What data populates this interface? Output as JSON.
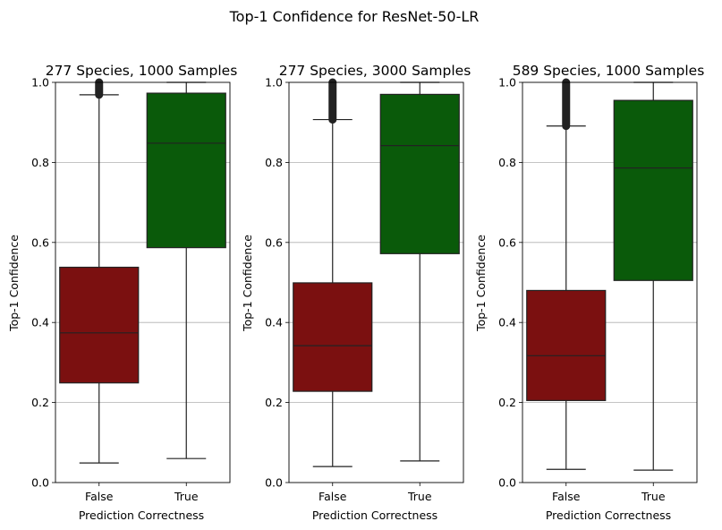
{
  "figure": {
    "suptitle": "Top-1 Confidence for ResNet-50-LR"
  },
  "chart_data": [
    {
      "type": "box",
      "title": "277 Species, 1000 Samples",
      "xlabel": "Prediction Correctness",
      "ylabel": "Top-1 Confidence",
      "ylim": [
        0,
        1
      ],
      "yticks": [
        "0.0",
        "0.2",
        "0.4",
        "0.6",
        "0.8",
        "1.0"
      ],
      "categories": [
        "False",
        "True"
      ],
      "grid": "y",
      "colors": [
        "#7b1010",
        "#0a5a0a"
      ],
      "boxes": [
        {
          "category": "False",
          "whisker_low": 0.049,
          "q1": 0.249,
          "median": 0.374,
          "q3": 0.538,
          "whisker_high": 0.969,
          "outliers_from": 0.969,
          "outliers_to": 1.0
        },
        {
          "category": "True",
          "whisker_low": 0.06,
          "q1": 0.587,
          "median": 0.848,
          "q3": 0.973,
          "whisker_high": 1.0
        }
      ]
    },
    {
      "type": "box",
      "title": "277 Species, 3000 Samples",
      "xlabel": "Prediction Correctness",
      "ylabel": "Top-1 Confidence",
      "ylim": [
        0,
        1
      ],
      "yticks": [
        "0.0",
        "0.2",
        "0.4",
        "0.6",
        "0.8",
        "1.0"
      ],
      "categories": [
        "False",
        "True"
      ],
      "grid": "y",
      "colors": [
        "#7b1010",
        "#0a5a0a"
      ],
      "boxes": [
        {
          "category": "False",
          "whisker_low": 0.04,
          "q1": 0.228,
          "median": 0.342,
          "q3": 0.499,
          "whisker_high": 0.907,
          "outliers_from": 0.907,
          "outliers_to": 1.0
        },
        {
          "category": "True",
          "whisker_low": 0.054,
          "q1": 0.572,
          "median": 0.842,
          "q3": 0.97,
          "whisker_high": 1.0
        }
      ]
    },
    {
      "type": "box",
      "title": "589 Species, 1000 Samples",
      "xlabel": "Prediction Correctness",
      "ylabel": "Top-1 Confidence",
      "ylim": [
        0,
        1
      ],
      "yticks": [
        "0.0",
        "0.2",
        "0.4",
        "0.6",
        "0.8",
        "1.0"
      ],
      "categories": [
        "False",
        "True"
      ],
      "grid": "y",
      "colors": [
        "#7b1010",
        "#0a5a0a"
      ],
      "boxes": [
        {
          "category": "False",
          "whisker_low": 0.033,
          "q1": 0.205,
          "median": 0.317,
          "q3": 0.48,
          "whisker_high": 0.891,
          "outliers_from": 0.891,
          "outliers_to": 1.0
        },
        {
          "category": "True",
          "whisker_low": 0.031,
          "q1": 0.505,
          "median": 0.786,
          "q3": 0.955,
          "whisker_high": 1.0
        }
      ]
    }
  ]
}
